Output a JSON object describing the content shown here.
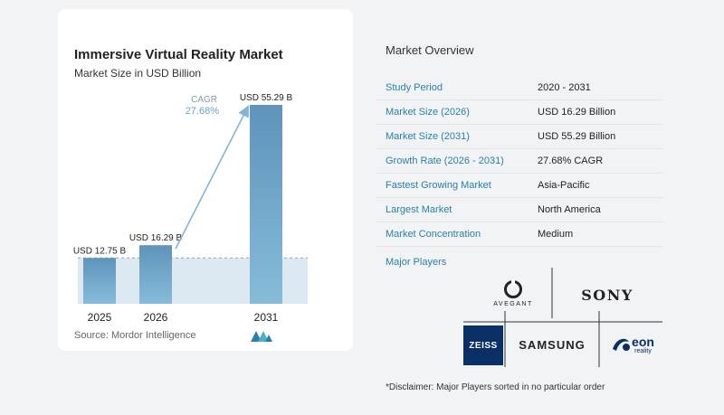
{
  "chart": {
    "title": "Immersive Virtual Reality Market",
    "subtitle": "Market Size in USD Billion",
    "source": "Source:  Mordor Intelligence",
    "cagr_label": "CAGR",
    "cagr_value": "27.68%",
    "colors": {
      "bar": "#6a9ec2",
      "bar_light": "#7fb6d8",
      "band": "#dde9f2",
      "arrow": "#7fb6d8"
    }
  },
  "chart_data": {
    "type": "bar",
    "categories": [
      "2025",
      "2026",
      "2031"
    ],
    "values": [
      12.75,
      16.29,
      55.29
    ],
    "data_labels": [
      "USD 12.75 B",
      "USD 16.29 B",
      "USD 55.29 B"
    ],
    "title": "Immersive Virtual Reality Market",
    "subtitle": "Market Size in USD Billion",
    "xlabel": "",
    "ylabel": "",
    "ylim": [
      0,
      55.29
    ],
    "grid": false,
    "legend": "none",
    "annotation": "CAGR 27.68%"
  },
  "overview": {
    "title": "Market Overview",
    "rows": [
      {
        "key": "Study Period",
        "value": "2020 - 2031"
      },
      {
        "key": "Market Size (2026)",
        "value": "USD 16.29 Billion"
      },
      {
        "key": "Market Size (2031)",
        "value": "USD 55.29 Billion"
      },
      {
        "key": "Growth Rate (2026 - 2031)",
        "value": "27.68% CAGR"
      },
      {
        "key": "Fastest Growing Market",
        "value": "Asia-Pacific"
      },
      {
        "key": "Largest Market",
        "value": "North America"
      },
      {
        "key": "Market Concentration",
        "value": "Medium"
      }
    ],
    "players_label": "Major Players",
    "logos": {
      "avegant": "AVEGANT",
      "sony": "SONY",
      "zeiss": "ZEISS",
      "samsung": "SAMSUNG",
      "eon": "eon",
      "eon_sub": "reality"
    },
    "disclaimer": "*Disclaimer: Major Players sorted in no particular order"
  }
}
